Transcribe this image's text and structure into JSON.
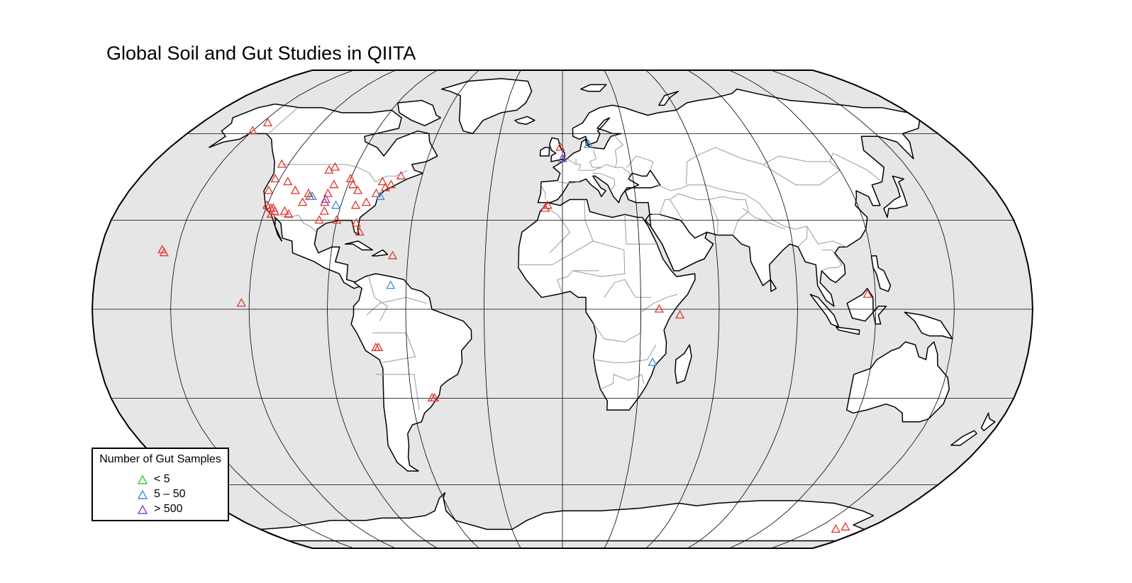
{
  "title": "Global Soil and Gut Studies in QIITA",
  "legend": {
    "title": "Number of Gut Samples",
    "items": [
      {
        "label": "< 5",
        "color": "#33cc33"
      },
      {
        "label": "5 – 50",
        "color": "#3a8fd9"
      },
      {
        "label": "> 500",
        "color": "#8a3fd9"
      }
    ]
  },
  "colors": {
    "ocean": "#e6e6e6",
    "land": "#ffffff",
    "graticule": "#000000",
    "borders": "#9a9a9a",
    "soil_marker": "#e0342a"
  },
  "markers": [
    {
      "lat": 61,
      "lon": -150,
      "c": "red"
    },
    {
      "lat": 64,
      "lon": -147,
      "c": "red"
    },
    {
      "lat": 49,
      "lon": -123,
      "c": "red"
    },
    {
      "lat": 44,
      "lon": -122,
      "c": "red"
    },
    {
      "lat": 40,
      "lon": -122,
      "c": "red"
    },
    {
      "lat": 35,
      "lon": -120,
      "c": "red"
    },
    {
      "lat": 34,
      "lon": -118,
      "c": "red"
    },
    {
      "lat": 34,
      "lon": -117,
      "c": "red"
    },
    {
      "lat": 33,
      "lon": -116,
      "c": "red"
    },
    {
      "lat": 32,
      "lon": -117,
      "c": "red"
    },
    {
      "lat": 33,
      "lon": -112,
      "c": "red"
    },
    {
      "lat": 32,
      "lon": -110,
      "c": "red"
    },
    {
      "lat": 36,
      "lon": -106,
      "c": "red"
    },
    {
      "lat": 39,
      "lon": -105,
      "c": "red"
    },
    {
      "lat": 38,
      "lon": -104,
      "c": "red"
    },
    {
      "lat": 40,
      "lon": -111,
      "c": "red"
    },
    {
      "lat": 43,
      "lon": -116,
      "c": "red"
    },
    {
      "lat": 47,
      "lon": -101,
      "c": "red"
    },
    {
      "lat": 48,
      "lon": -99,
      "c": "red"
    },
    {
      "lat": 42,
      "lon": -96,
      "c": "red"
    },
    {
      "lat": 39,
      "lon": -97,
      "c": "red"
    },
    {
      "lat": 36,
      "lon": -97,
      "c": "red"
    },
    {
      "lat": 33,
      "lon": -96,
      "c": "red"
    },
    {
      "lat": 30,
      "lon": -97,
      "c": "red"
    },
    {
      "lat": 44,
      "lon": -90,
      "c": "red"
    },
    {
      "lat": 42,
      "lon": -88,
      "c": "red"
    },
    {
      "lat": 40,
      "lon": -85,
      "c": "red"
    },
    {
      "lat": 35,
      "lon": -84,
      "c": "red"
    },
    {
      "lat": 36,
      "lon": -80,
      "c": "red"
    },
    {
      "lat": 39,
      "lon": -77,
      "c": "red"
    },
    {
      "lat": 41,
      "lon": -74,
      "c": "red"
    },
    {
      "lat": 42,
      "lon": -72,
      "c": "red"
    },
    {
      "lat": 45,
      "lon": -69,
      "c": "red"
    },
    {
      "lat": 43,
      "lon": -76,
      "c": "red"
    },
    {
      "lat": 29,
      "lon": -82,
      "c": "red"
    },
    {
      "lat": 26,
      "lon": -80,
      "c": "red"
    },
    {
      "lat": 30,
      "lon": -90,
      "c": "red"
    },
    {
      "lat": 20,
      "lon": -156,
      "c": "red"
    },
    {
      "lat": 19,
      "lon": -155,
      "c": "red"
    },
    {
      "lat": 18,
      "lon": -66,
      "c": "red"
    },
    {
      "lat": 2,
      "lon": -123,
      "c": "red"
    },
    {
      "lat": -13,
      "lon": -72,
      "c": "red"
    },
    {
      "lat": -13,
      "lon": -71,
      "c": "red"
    },
    {
      "lat": -30,
      "lon": -51,
      "c": "red"
    },
    {
      "lat": -30,
      "lon": -52,
      "c": "red"
    },
    {
      "lat": 34,
      "lon": -7,
      "c": "red"
    },
    {
      "lat": 35,
      "lon": -6,
      "c": "red"
    },
    {
      "lat": 55,
      "lon": -1,
      "c": "red"
    },
    {
      "lat": 0,
      "lon": 37,
      "c": "red"
    },
    {
      "lat": -2,
      "lon": 45,
      "c": "red"
    },
    {
      "lat": 5,
      "lon": 117,
      "c": "red"
    },
    {
      "lat": -77,
      "lon": 166,
      "c": "red"
    },
    {
      "lat": -78,
      "lon": 163,
      "c": "red"
    },
    {
      "lat": 35,
      "lon": -92,
      "c": "blue"
    },
    {
      "lat": 38,
      "lon": -75,
      "c": "blue"
    },
    {
      "lat": 38,
      "lon": -103,
      "c": "blue"
    },
    {
      "lat": 8,
      "lon": -66,
      "c": "blue"
    },
    {
      "lat": -18,
      "lon": 35,
      "c": "blue"
    },
    {
      "lat": 56,
      "lon": 12,
      "c": "blue"
    },
    {
      "lat": 37,
      "lon": -97,
      "c": "purple"
    },
    {
      "lat": 51,
      "lon": 0,
      "c": "purple"
    }
  ]
}
